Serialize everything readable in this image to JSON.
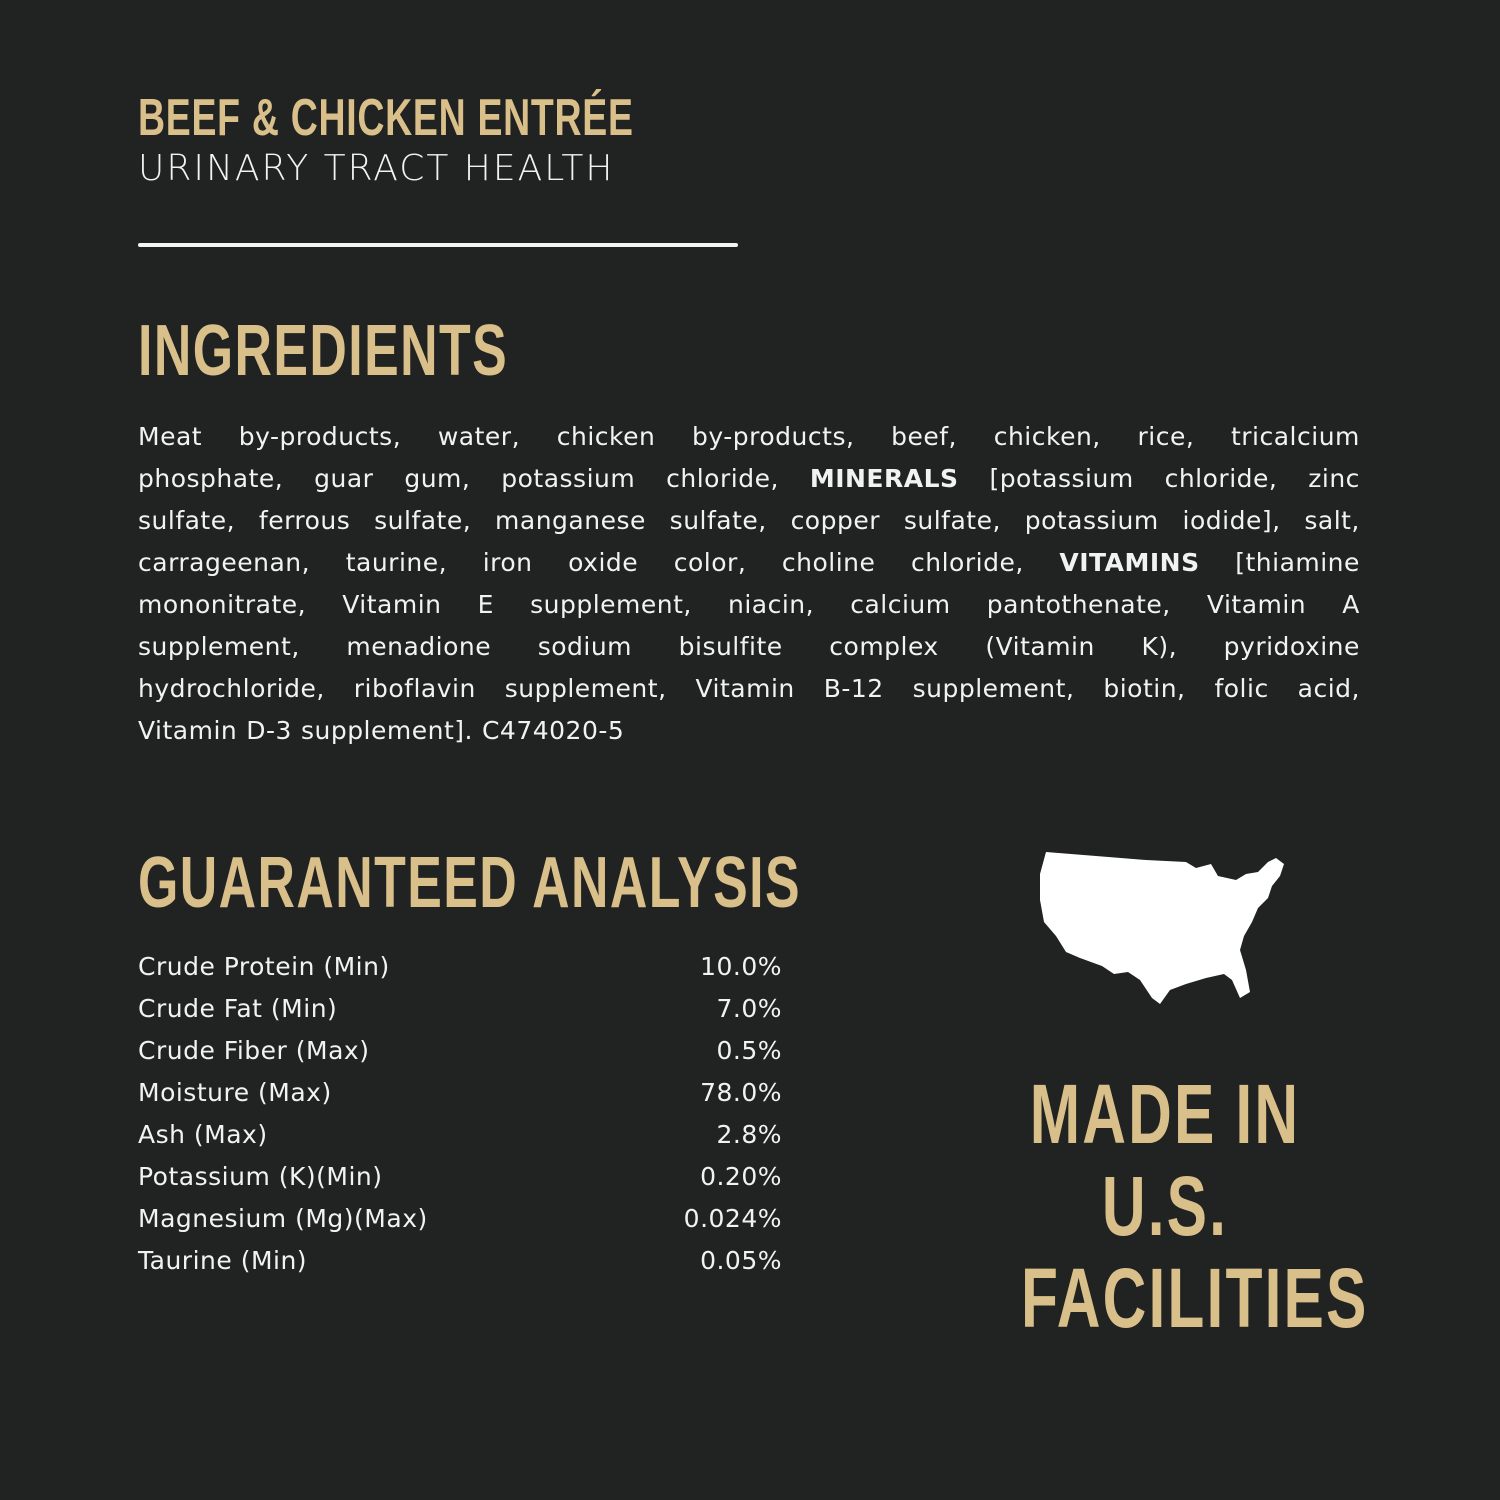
{
  "colors": {
    "background": "#212222",
    "accent_gold": "#d9bf8a",
    "text": "#f2f2f2"
  },
  "header": {
    "title": "BEEF & CHICKEN ENTRÉE",
    "subtitle": "URINARY TRACT HEALTH"
  },
  "ingredients": {
    "heading": "INGREDIENTS",
    "lines": [
      [
        {
          "t": "Meat by-products, water, chicken by-products, beef, chicken, rice, tricalcium"
        }
      ],
      [
        {
          "t": "phosphate, guar gum, potassium chloride, "
        },
        {
          "t": "MINERALS",
          "b": true
        },
        {
          "t": " [potassium chloride, zinc"
        }
      ],
      [
        {
          "t": "sulfate, ferrous sulfate, manganese sulfate, copper sulfate, potassium iodide], salt,"
        }
      ],
      [
        {
          "t": "carrageenan, taurine, iron oxide color, choline chloride, "
        },
        {
          "t": "VITAMINS",
          "b": true
        },
        {
          "t": " [thiamine"
        }
      ],
      [
        {
          "t": "mononitrate, Vitamin E supplement, niacin, calcium pantothenate, Vitamin A"
        }
      ],
      [
        {
          "t": "supplement, menadione sodium bisulfite complex (Vitamin K), pyridoxine"
        }
      ],
      [
        {
          "t": "hydrochloride, riboflavin supplement, Vitamin B-12 supplement, biotin, folic acid,"
        }
      ],
      [
        {
          "t": "Vitamin D-3 supplement].  C474020-5"
        }
      ]
    ]
  },
  "analysis": {
    "heading": "GUARANTEED ANALYSIS",
    "rows": [
      {
        "label": "Crude Protein (Min)",
        "value": "10.0%"
      },
      {
        "label": "Crude Fat (Min)",
        "value": "7.0%"
      },
      {
        "label": "Crude Fiber (Max)",
        "value": "0.5%"
      },
      {
        "label": "Moisture (Max)",
        "value": "78.0%"
      },
      {
        "label": "Ash (Max)",
        "value": "2.8%"
      },
      {
        "label": "Potassium (K)(Min)",
        "value": "0.20%"
      },
      {
        "label": "Magnesium (Mg)(Max)",
        "value": "0.024%"
      },
      {
        "label": "Taurine (Min)",
        "value": "0.05%"
      }
    ]
  },
  "badge": {
    "icon": "usa-map-icon",
    "lines": [
      "MADE IN",
      "U.S.",
      "FACILITIES"
    ]
  }
}
